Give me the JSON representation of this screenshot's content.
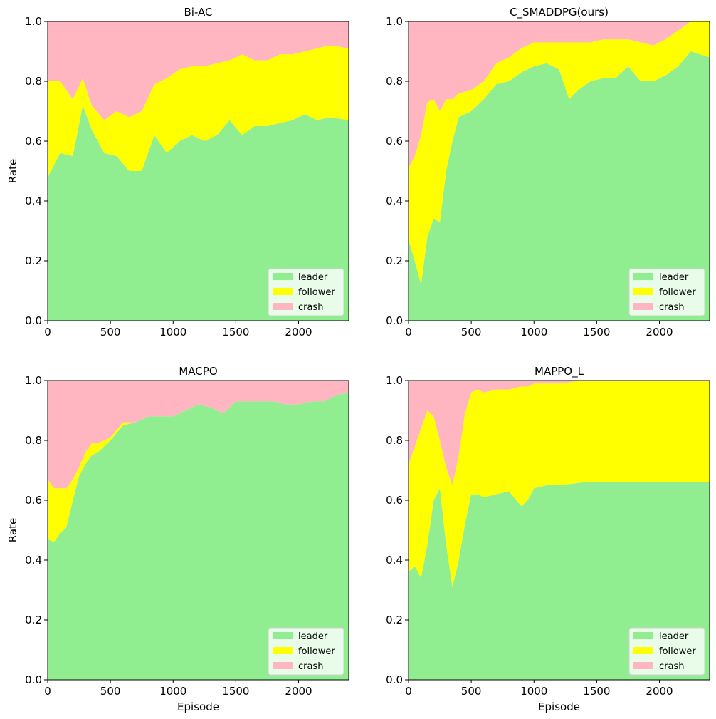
{
  "chart_data": [
    {
      "type": "area",
      "title": "Bi-AC",
      "xlabel": "",
      "ylabel": "Rate",
      "xlim": [
        0,
        2400
      ],
      "ylim": [
        0,
        1
      ],
      "xticks": [
        "0",
        "500",
        "1000",
        "1500",
        "2000"
      ],
      "yticks": [
        "0.0",
        "0.2",
        "0.4",
        "0.6",
        "0.8",
        "1.0"
      ],
      "legend_position": "bottom-right",
      "x": [
        0,
        100,
        200,
        280,
        350,
        450,
        550,
        650,
        750,
        850,
        950,
        1050,
        1150,
        1250,
        1350,
        1450,
        1550,
        1650,
        1750,
        1850,
        1950,
        2050,
        2150,
        2250,
        2400
      ],
      "series": [
        {
          "name": "leader",
          "values": [
            0.48,
            0.56,
            0.55,
            0.72,
            0.64,
            0.56,
            0.55,
            0.5,
            0.5,
            0.62,
            0.56,
            0.6,
            0.62,
            0.6,
            0.62,
            0.67,
            0.62,
            0.65,
            0.65,
            0.66,
            0.67,
            0.69,
            0.67,
            0.68,
            0.67
          ]
        },
        {
          "name": "follower",
          "values": [
            0.32,
            0.24,
            0.19,
            0.09,
            0.08,
            0.11,
            0.15,
            0.18,
            0.2,
            0.17,
            0.25,
            0.24,
            0.23,
            0.25,
            0.24,
            0.2,
            0.27,
            0.22,
            0.22,
            0.23,
            0.22,
            0.21,
            0.24,
            0.24,
            0.24
          ]
        },
        {
          "name": "crash",
          "values": [
            0.2,
            0.2,
            0.26,
            0.19,
            0.28,
            0.33,
            0.3,
            0.32,
            0.3,
            0.21,
            0.19,
            0.16,
            0.15,
            0.15,
            0.14,
            0.13,
            0.11,
            0.13,
            0.13,
            0.11,
            0.11,
            0.1,
            0.09,
            0.08,
            0.09
          ]
        }
      ]
    },
    {
      "type": "area",
      "title": "C_SMADDPG(ours)",
      "xlabel": "",
      "ylabel": "",
      "xlim": [
        0,
        2400
      ],
      "ylim": [
        0,
        1
      ],
      "xticks": [
        "0",
        "500",
        "1000",
        "1500",
        "2000"
      ],
      "yticks": [
        "0.0",
        "0.2",
        "0.4",
        "0.6",
        "0.8",
        "1.0"
      ],
      "legend_position": "bottom-right",
      "x": [
        0,
        50,
        100,
        150,
        200,
        250,
        300,
        350,
        400,
        500,
        600,
        700,
        800,
        900,
        1000,
        1100,
        1200,
        1280,
        1350,
        1450,
        1550,
        1650,
        1750,
        1850,
        1950,
        2050,
        2150,
        2250,
        2400
      ],
      "series": [
        {
          "name": "leader",
          "values": [
            0.27,
            0.2,
            0.12,
            0.28,
            0.34,
            0.33,
            0.5,
            0.6,
            0.68,
            0.7,
            0.74,
            0.79,
            0.8,
            0.83,
            0.85,
            0.86,
            0.84,
            0.74,
            0.77,
            0.8,
            0.81,
            0.81,
            0.85,
            0.8,
            0.8,
            0.82,
            0.85,
            0.9,
            0.88
          ]
        },
        {
          "name": "follower",
          "values": [
            0.24,
            0.35,
            0.5,
            0.45,
            0.4,
            0.37,
            0.24,
            0.14,
            0.08,
            0.07,
            0.06,
            0.07,
            0.08,
            0.08,
            0.08,
            0.07,
            0.09,
            0.19,
            0.16,
            0.13,
            0.13,
            0.13,
            0.09,
            0.13,
            0.12,
            0.12,
            0.12,
            0.1,
            0.12
          ]
        },
        {
          "name": "crash",
          "values": [
            0.49,
            0.45,
            0.38,
            0.27,
            0.26,
            0.3,
            0.26,
            0.26,
            0.24,
            0.23,
            0.2,
            0.14,
            0.12,
            0.09,
            0.07,
            0.07,
            0.07,
            0.07,
            0.07,
            0.07,
            0.06,
            0.06,
            0.06,
            0.07,
            0.08,
            0.06,
            0.03,
            0.0,
            0.0
          ]
        }
      ]
    },
    {
      "type": "area",
      "title": "MACPO",
      "xlabel": "Episode",
      "ylabel": "Rate",
      "xlim": [
        0,
        2400
      ],
      "ylim": [
        0,
        1
      ],
      "xticks": [
        "0",
        "500",
        "1000",
        "1500",
        "2000"
      ],
      "yticks": [
        "0.0",
        "0.2",
        "0.4",
        "0.6",
        "0.8",
        "1.0"
      ],
      "legend_position": "bottom-right",
      "x": [
        0,
        50,
        100,
        150,
        200,
        250,
        300,
        350,
        400,
        500,
        600,
        700,
        800,
        900,
        1000,
        1100,
        1200,
        1300,
        1400,
        1500,
        1600,
        1700,
        1800,
        1900,
        2000,
        2100,
        2200,
        2300,
        2400
      ],
      "series": [
        {
          "name": "leader",
          "values": [
            0.47,
            0.46,
            0.49,
            0.51,
            0.6,
            0.68,
            0.72,
            0.75,
            0.76,
            0.8,
            0.85,
            0.86,
            0.88,
            0.88,
            0.88,
            0.9,
            0.92,
            0.91,
            0.89,
            0.93,
            0.93,
            0.93,
            0.93,
            0.92,
            0.92,
            0.93,
            0.93,
            0.95,
            0.96
          ]
        },
        {
          "name": "follower",
          "values": [
            0.2,
            0.18,
            0.15,
            0.13,
            0.07,
            0.03,
            0.04,
            0.04,
            0.03,
            0.01,
            0.01,
            0.0,
            0.0,
            0.0,
            0.0,
            0.0,
            0.0,
            0.0,
            0.0,
            0.0,
            0.0,
            0.0,
            0.0,
            0.0,
            0.0,
            0.0,
            0.0,
            0.0,
            0.0
          ]
        },
        {
          "name": "crash",
          "values": [
            0.33,
            0.36,
            0.36,
            0.36,
            0.33,
            0.29,
            0.24,
            0.21,
            0.21,
            0.19,
            0.14,
            0.14,
            0.12,
            0.12,
            0.12,
            0.1,
            0.08,
            0.09,
            0.11,
            0.07,
            0.07,
            0.07,
            0.07,
            0.08,
            0.08,
            0.07,
            0.07,
            0.05,
            0.04
          ]
        }
      ]
    },
    {
      "type": "area",
      "title": "MAPPO_L",
      "xlabel": "Episode",
      "ylabel": "",
      "xlim": [
        0,
        2400
      ],
      "ylim": [
        0,
        1
      ],
      "xticks": [
        "0",
        "500",
        "1000",
        "1500",
        "2000"
      ],
      "yticks": [
        "0.0",
        "0.2",
        "0.4",
        "0.6",
        "0.8",
        "1.0"
      ],
      "legend_position": "bottom-right",
      "x": [
        0,
        50,
        100,
        150,
        200,
        250,
        300,
        350,
        400,
        450,
        500,
        550,
        600,
        700,
        800,
        900,
        950,
        1000,
        1100,
        1200,
        1400,
        1600,
        1800,
        2000,
        2200,
        2400
      ],
      "series": [
        {
          "name": "leader",
          "values": [
            0.36,
            0.38,
            0.34,
            0.45,
            0.6,
            0.64,
            0.45,
            0.31,
            0.4,
            0.52,
            0.62,
            0.62,
            0.61,
            0.62,
            0.63,
            0.58,
            0.6,
            0.64,
            0.65,
            0.65,
            0.66,
            0.66,
            0.66,
            0.66,
            0.66,
            0.66
          ]
        },
        {
          "name": "follower",
          "values": [
            0.36,
            0.4,
            0.5,
            0.45,
            0.28,
            0.16,
            0.26,
            0.34,
            0.35,
            0.37,
            0.34,
            0.35,
            0.35,
            0.35,
            0.34,
            0.4,
            0.38,
            0.35,
            0.34,
            0.34,
            0.34,
            0.34,
            0.34,
            0.34,
            0.34,
            0.34
          ]
        },
        {
          "name": "crash",
          "values": [
            0.28,
            0.22,
            0.16,
            0.1,
            0.12,
            0.2,
            0.29,
            0.35,
            0.25,
            0.11,
            0.04,
            0.03,
            0.04,
            0.03,
            0.03,
            0.02,
            0.02,
            0.01,
            0.01,
            0.01,
            0.0,
            0.0,
            0.0,
            0.0,
            0.0,
            0.0
          ]
        }
      ]
    }
  ],
  "colors": {
    "leader": "#90ee90",
    "follower": "#ffff00",
    "crash": "#ffb6c1"
  }
}
